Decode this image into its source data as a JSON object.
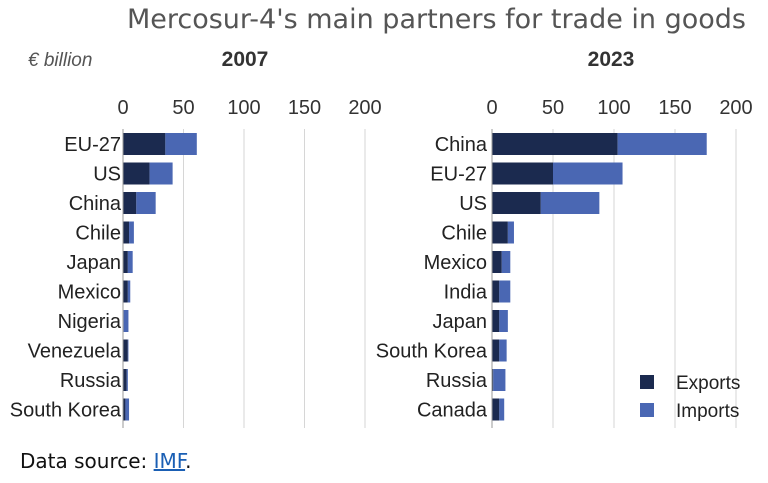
{
  "title": "Mercosur-4's main partners for trade in goods",
  "unit_label": "€ billion",
  "source": {
    "prefix": "Data source: ",
    "link": "IMF",
    "suffix": "."
  },
  "legend": [
    {
      "label": "Exports",
      "color": "#1b2a4f"
    },
    {
      "label": "Imports",
      "color": "#4a67b3"
    }
  ],
  "chart_data": [
    {
      "type": "bar",
      "orientation": "horizontal",
      "stacked": true,
      "title": "2007",
      "categories": [
        "EU-27",
        "US",
        "China",
        "Chile",
        "Japan",
        "Mexico",
        "Nigeria",
        "Venezuela",
        "Russia",
        "South Korea"
      ],
      "series": [
        {
          "name": "Exports",
          "values": [
            35,
            22,
            11,
            5,
            4,
            4,
            0.5,
            4,
            3,
            2
          ]
        },
        {
          "name": "Imports",
          "values": [
            26,
            19,
            16,
            4,
            4,
            2,
            4,
            0.5,
            1,
            3
          ]
        }
      ],
      "xlim": [
        0,
        200
      ],
      "xticks": [
        0,
        50,
        100,
        150,
        200
      ],
      "grid": true
    },
    {
      "type": "bar",
      "orientation": "horizontal",
      "stacked": true,
      "title": "2023",
      "categories": [
        "China",
        "EU-27",
        "US",
        "Chile",
        "Mexico",
        "India",
        "Japan",
        "South Korea",
        "Russia",
        "Canada"
      ],
      "series": [
        {
          "name": "Exports",
          "values": [
            103,
            50,
            40,
            13,
            8,
            6,
            6,
            6,
            1,
            6
          ]
        },
        {
          "name": "Imports",
          "values": [
            73,
            57,
            48,
            5,
            7,
            9,
            7,
            6,
            10,
            4
          ]
        }
      ],
      "xlim": [
        0,
        200
      ],
      "xticks": [
        0,
        50,
        100,
        150,
        200
      ],
      "grid": true
    }
  ]
}
